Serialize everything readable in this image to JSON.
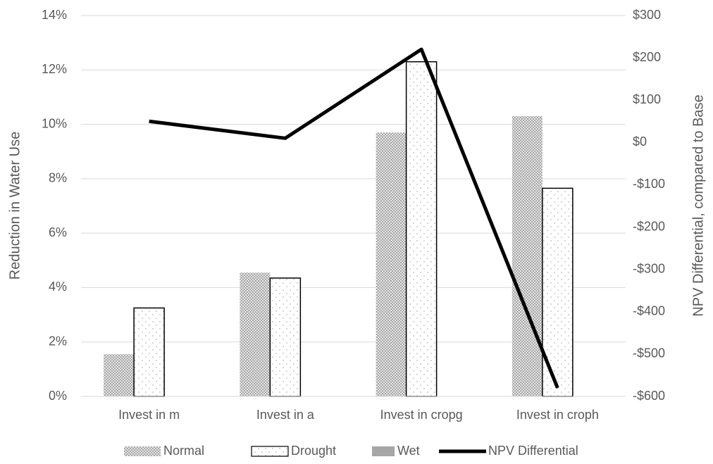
{
  "chart_data": {
    "type": "bar-line",
    "categories": [
      "Invest in m",
      "Invest in a",
      "Invest in cropg",
      "Invest in croph"
    ],
    "series": [
      {
        "name": "Normal",
        "type": "bar",
        "color": "#a6a6a6",
        "pattern": "dense",
        "values": [
          1.55,
          4.55,
          9.7,
          10.3
        ]
      },
      {
        "name": "Drought",
        "type": "bar",
        "color": "#000000",
        "pattern": "dots",
        "values": [
          3.25,
          4.35,
          12.3,
          7.65
        ]
      },
      {
        "name": "Wet",
        "type": "bar",
        "color": "#a6a6a6",
        "pattern": "solid",
        "values": [
          0,
          0,
          0,
          0
        ]
      },
      {
        "name": "NPV Differential",
        "type": "line",
        "axis": "y2",
        "color": "#000000",
        "values": [
          50,
          10,
          220,
          -580
        ]
      }
    ],
    "ylabel": "Reduction in Water Use",
    "y2label": "NPV Differential, compared to Base",
    "ylim": [
      0,
      14
    ],
    "yticks": [
      {
        "value": 0,
        "label": "0%"
      },
      {
        "value": 2,
        "label": "2%"
      },
      {
        "value": 4,
        "label": "4%"
      },
      {
        "value": 6,
        "label": "6%"
      },
      {
        "value": 8,
        "label": "8%"
      },
      {
        "value": 10,
        "label": "10%"
      },
      {
        "value": 12,
        "label": "12%"
      },
      {
        "value": 14,
        "label": "14%"
      }
    ],
    "y2lim": [
      -600,
      300
    ],
    "y2ticks": [
      {
        "value": -600,
        "label": "-$600"
      },
      {
        "value": -500,
        "label": "-$500"
      },
      {
        "value": -400,
        "label": "-$400"
      },
      {
        "value": -300,
        "label": "-$300"
      },
      {
        "value": -200,
        "label": "-$200"
      },
      {
        "value": -100,
        "label": "-$100"
      },
      {
        "value": 0,
        "label": "$0"
      },
      {
        "value": 100,
        "label": "$100"
      },
      {
        "value": 200,
        "label": "$200"
      },
      {
        "value": 300,
        "label": "$300"
      }
    ],
    "grid": true,
    "legend": "bottom"
  }
}
